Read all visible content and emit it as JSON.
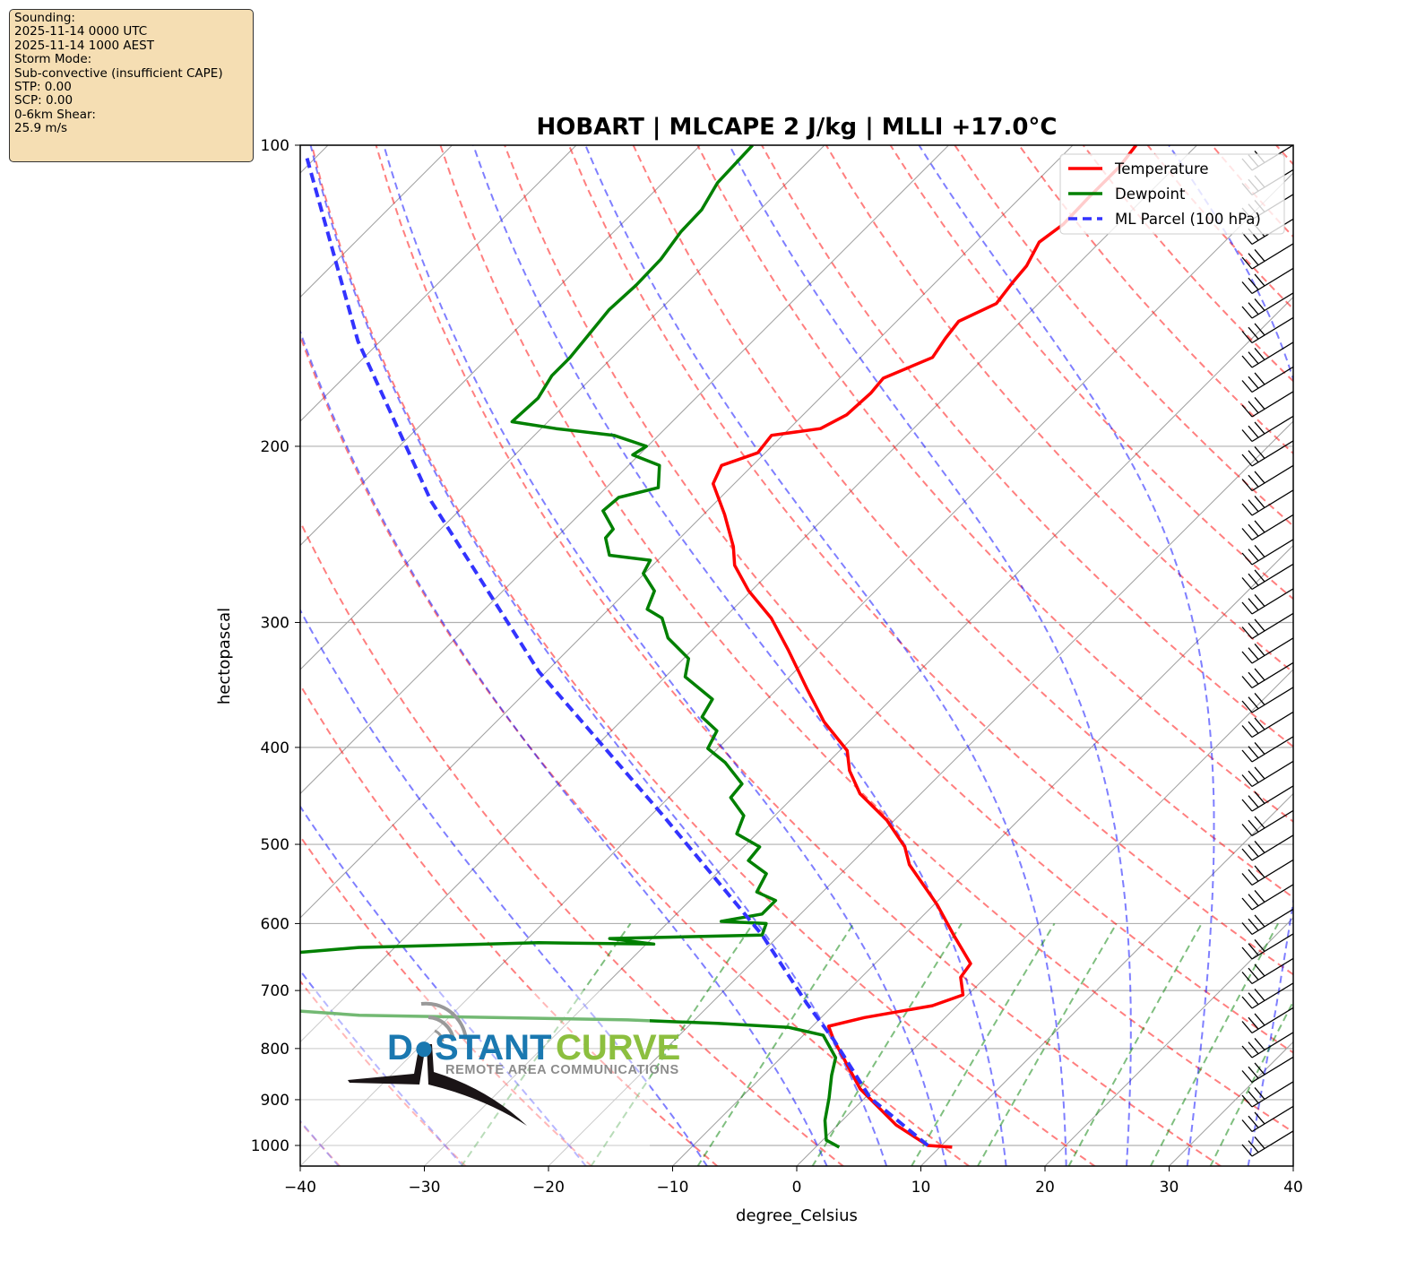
{
  "info_box": {
    "lines": [
      "Sounding:",
      "2025-11-14 0000 UTC",
      "2025-11-14 1000 AEST",
      "Storm Mode:",
      "Sub-convective (insufficient CAPE)",
      "STP: 0.00",
      "SCP: 0.00",
      "0-6km Shear:",
      "25.9 m/s"
    ]
  },
  "logo": {
    "word1": "D●STANT",
    "word2": "CURVE",
    "tagline": "REMOTE AREA COMMUNICATIONS",
    "color_blue": "#1a78b0",
    "color_green": "#8cbf3f"
  },
  "chart_data": {
    "type": "line",
    "subtype": "skew-T log-p",
    "title": "HOBART | MLCAPE 2 J/kg | MLLI +17.0°C",
    "xlabel": "degree_Celsius",
    "ylabel": "hectopascal",
    "xlim": [
      -40,
      40
    ],
    "ylim": [
      1050,
      100
    ],
    "yscale": "log",
    "grid": true,
    "legend": "top-right",
    "xticks": [
      "−40",
      "−30",
      "−20",
      "−10",
      "0",
      "10",
      "20",
      "30",
      "40"
    ],
    "xtick_values": [
      -40,
      -30,
      -20,
      -10,
      0,
      10,
      20,
      30,
      40
    ],
    "yticks": [
      "100",
      "200",
      "300",
      "400",
      "500",
      "600",
      "700",
      "800",
      "900",
      "1000"
    ],
    "ytick_values": [
      100,
      200,
      300,
      400,
      500,
      600,
      700,
      800,
      900,
      1000
    ],
    "series": [
      {
        "name": "Temperature",
        "color": "#ff0000",
        "style": "solid",
        "pressure_hPa": [
          1004,
          1000,
          954,
          878,
          784,
          760,
          745,
          725,
          707,
          679,
          658,
          618,
          575,
          524,
          503,
          473,
          445,
          422,
          403,
          377,
          349,
          320,
          297,
          279,
          263,
          252,
          234,
          218,
          209,
          203,
          195,
          192,
          186,
          177,
          171,
          163,
          156,
          150,
          144,
          137,
          132,
          125,
          120,
          113,
          105,
          100
        ],
        "temperature_C": [
          11.0,
          8.9,
          4.7,
          -1.1,
          -7.2,
          -8.7,
          -6.5,
          -2.0,
          -0.4,
          -2.0,
          -2.3,
          -5.8,
          -9.7,
          -15.2,
          -17.0,
          -20.6,
          -24.9,
          -27.6,
          -29.4,
          -33.6,
          -37.7,
          -42.2,
          -46.2,
          -50.2,
          -53.4,
          -55.0,
          -58.3,
          -61.7,
          -62.5,
          -60.6,
          -60.9,
          -57.5,
          -56.5,
          -56.3,
          -56.5,
          -54.2,
          -54.7,
          -55.0,
          -53.4,
          -53.8,
          -54.0,
          -54.9,
          -54.4,
          -54.5,
          -54.5,
          -54.9
        ]
      },
      {
        "name": "Dewpoint",
        "color": "#008000",
        "style": "solid",
        "pressure_hPa": [
          1004,
          988,
          944,
          896,
          851,
          817,
          776,
          762,
          755,
          749,
          741,
          734,
          700,
          655,
          641,
          634,
          627,
          629,
          621,
          616,
          600,
          597,
          587,
          569,
          558,
          535,
          519,
          503,
          488,
          468,
          449,
          435,
          414,
          401,
          385,
          373,
          358,
          340,
          326,
          311,
          297,
          291,
          279,
          268,
          260,
          257,
          247,
          242,
          232,
          225,
          220,
          209,
          204,
          200,
          195,
          192,
          189,
          179,
          170,
          163,
          146,
          138,
          130,
          122,
          116,
          109,
          100
        ],
        "temperature_C": [
          1.9,
          0.3,
          -1.4,
          -2.9,
          -4.5,
          -5.6,
          -8.4,
          -11.8,
          -17.9,
          -25.4,
          -47.4,
          -52.5,
          -70,
          -70,
          -57.2,
          -52.9,
          -38.8,
          -29.4,
          -33.4,
          -21.4,
          -22.0,
          -25.8,
          -23.1,
          -23.1,
          -25.3,
          -26.0,
          -28.5,
          -28.7,
          -31.6,
          -32.5,
          -35.0,
          -35.2,
          -38.3,
          -40.8,
          -41.5,
          -43.8,
          -44.4,
          -48.4,
          -49.6,
          -52.9,
          -55.0,
          -56.9,
          -57.8,
          -60.1,
          -60.6,
          -64.3,
          -66.0,
          -66.1,
          -68.4,
          -68.2,
          -65.8,
          -67.5,
          -70.5,
          -70.1,
          -73.6,
          -78.8,
          -82.9,
          -82.7,
          -83.4,
          -83.4,
          -84.1,
          -83.9,
          -84.0,
          -84.6,
          -84.7,
          -85.6,
          -85.8
        ]
      },
      {
        "name": "ML Parcel (100 hPa)",
        "color": "#3333ff",
        "style": "dashed",
        "pressure_hPa": [
          1000,
          896,
          784,
          721,
          616,
          468,
          336,
          227,
          157,
          102
        ],
        "temperature_C": [
          8.9,
          0.4,
          -7.2,
          -12.3,
          -21.4,
          -39.0,
          -60.6,
          -83.0,
          -101.8,
          -121.1
        ]
      }
    ],
    "background_lines": {
      "isotherms_color": "#a0a0a0",
      "dry_adiabats_color": "#ff0000",
      "moist_adiabats_color": "#0000ff",
      "mixing_ratio_color": "#008000"
    }
  }
}
